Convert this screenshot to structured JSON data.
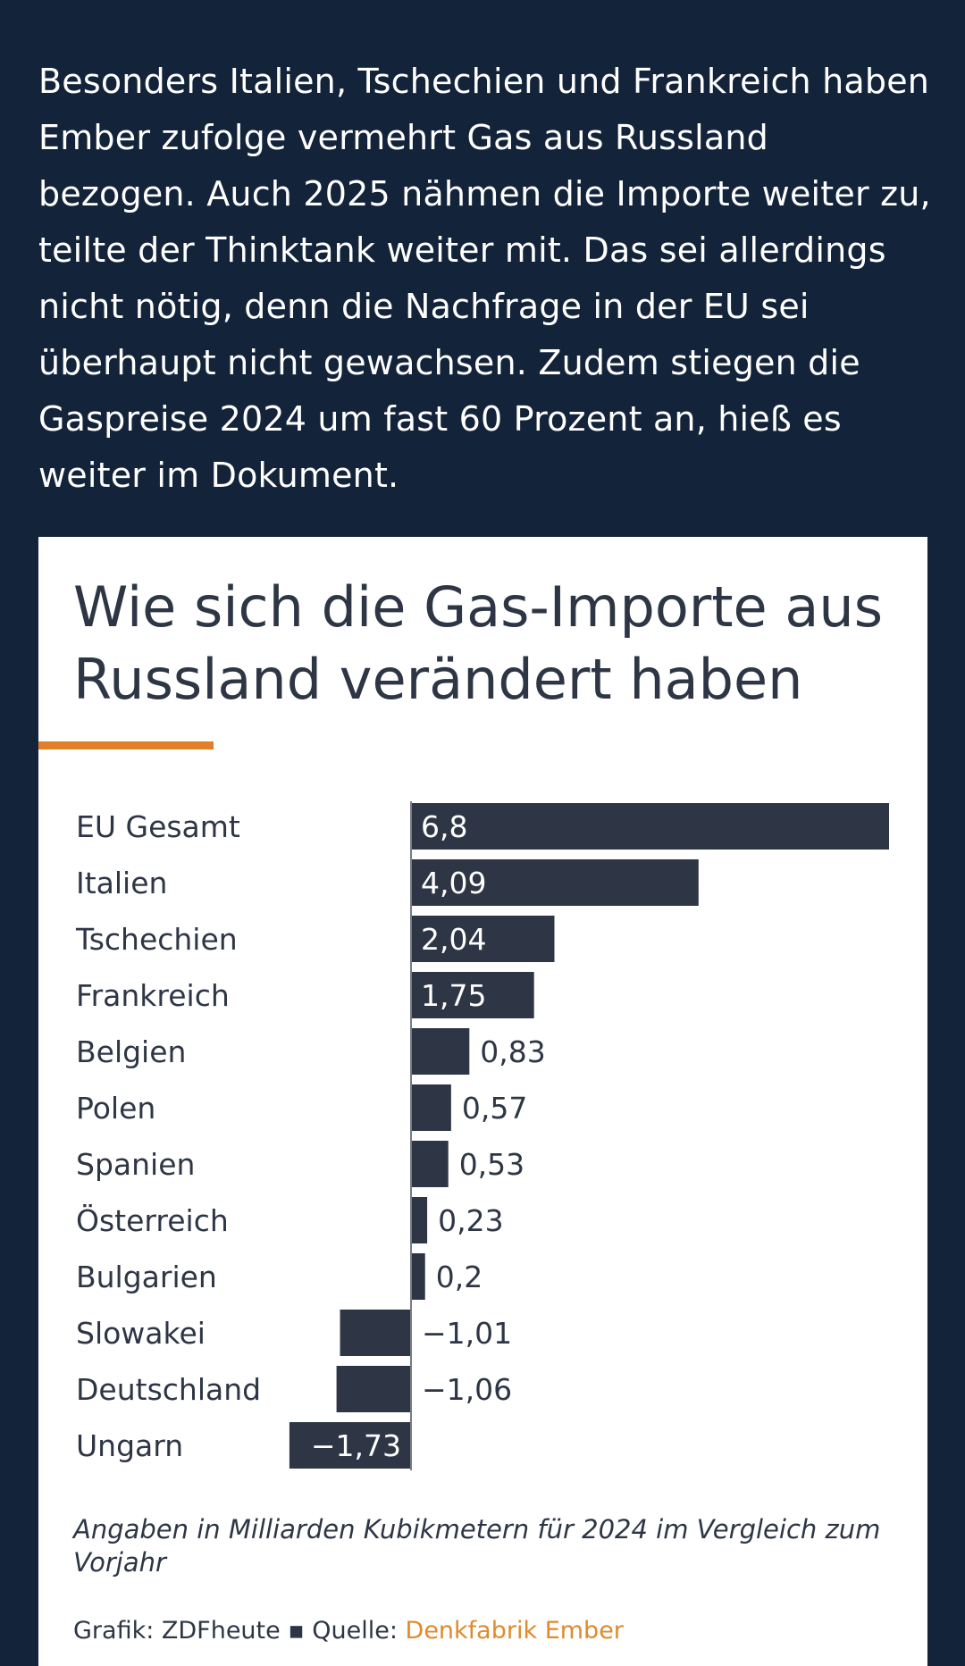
{
  "article": {
    "paragraph": "Besonders Italien, Tschechien und Frankreich haben Ember zufolge vermehrt Gas aus Russland bezogen. Auch 2025 nähmen die Importe weiter zu, teilte der Thinktank weiter mit. Das sei allerdings nicht nötig, denn die Nachfrage in der EU sei überhaupt nicht gewachsen. Zudem stiegen die Gaspreise 2024 um fast 60 Prozent an, hieß es weiter im Dokument."
  },
  "chart_data": {
    "type": "bar",
    "orientation": "horizontal",
    "title": "Wie sich die Gas-Importe aus Russland verändert haben",
    "categories": [
      "EU Gesamt",
      "Italien",
      "Tschechien",
      "Frankreich",
      "Belgien",
      "Polen",
      "Spanien",
      "Österreich",
      "Bulgarien",
      "Slowakei",
      "Deutschland",
      "Ungarn"
    ],
    "values": [
      6.8,
      4.09,
      2.04,
      1.75,
      0.83,
      0.57,
      0.53,
      0.23,
      0.2,
      -1.01,
      -1.06,
      -1.73
    ],
    "value_labels": [
      "6,8",
      "4,09",
      "2,04",
      "1,75",
      "0,83",
      "0,57",
      "0,53",
      "0,23",
      "0,2",
      "−1,01",
      "−1,06",
      "−1,73"
    ],
    "xlim": [
      -1.73,
      6.8
    ],
    "grid": false,
    "bar_color": "#2e3645",
    "accent_color": "#e27f2a",
    "footnote": "Angaben in Milliarden Kubikmetern für 2024 im Vergleich zum Vorjahr"
  },
  "credits": {
    "grafik": "Grafik: ZDFheute",
    "separator": "▪",
    "quelle_label": "Quelle:",
    "quelle_link": "Denkfabrik Ember"
  }
}
